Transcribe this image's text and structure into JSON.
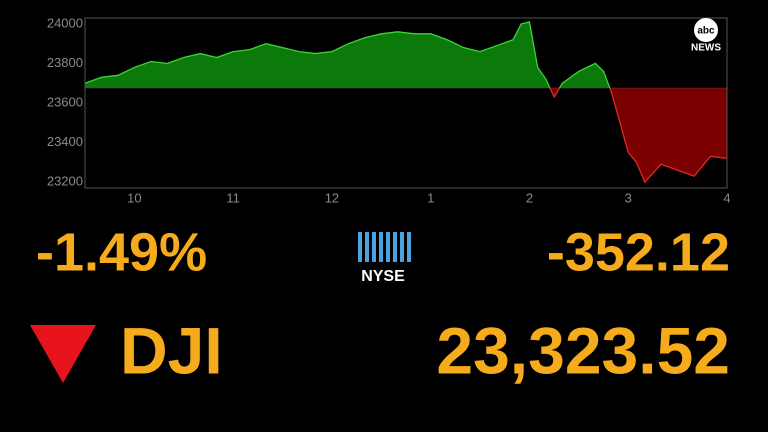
{
  "chart_data": {
    "type": "area",
    "x": [
      9.5,
      9.667,
      9.833,
      10,
      10.167,
      10.333,
      10.5,
      10.667,
      10.833,
      11,
      11.167,
      11.333,
      11.5,
      11.667,
      11.833,
      12,
      12.167,
      12.333,
      12.5,
      12.667,
      12.833,
      13,
      13.167,
      13.333,
      13.5,
      13.667,
      13.833,
      13.917,
      14,
      14.083,
      14.167,
      14.25,
      14.333,
      14.5,
      14.667,
      14.75,
      14.833,
      15,
      15.083,
      15.167,
      15.333,
      15.5,
      15.667,
      15.833,
      16
    ],
    "values": [
      23700,
      23730,
      23740,
      23780,
      23810,
      23800,
      23830,
      23850,
      23830,
      23860,
      23870,
      23900,
      23880,
      23860,
      23850,
      23860,
      23900,
      23930,
      23950,
      23960,
      23950,
      23950,
      23920,
      23880,
      23860,
      23890,
      23920,
      24000,
      24010,
      23780,
      23720,
      23630,
      23700,
      23760,
      23800,
      23760,
      23650,
      23350,
      23300,
      23200,
      23290,
      23260,
      23230,
      23330,
      23320
    ],
    "baseline": 23675.64,
    "color": "#3cd23c",
    "fill": "#0b7a0b",
    "negative_color": "#e02828",
    "negative_fill": "#7a0000",
    "xlim": [
      9.5,
      16
    ],
    "ylim": [
      23170,
      24030
    ],
    "xticks": [
      10,
      11,
      12,
      {
        "value": 13,
        "label": "1"
      },
      {
        "value": 14,
        "label": "2"
      },
      {
        "value": 15,
        "label": "3"
      },
      {
        "value": 16,
        "label": "4"
      }
    ],
    "yticks": [
      23200,
      23400,
      23600,
      23800,
      24000
    ],
    "grid": false
  },
  "ticker": {
    "percent": "-1.49%",
    "exchange": "NYSE",
    "change": "-352.12",
    "symbol": "DJI",
    "price": "23,323.52"
  },
  "logo": {
    "top": "abc",
    "bottom": "NEWS"
  }
}
